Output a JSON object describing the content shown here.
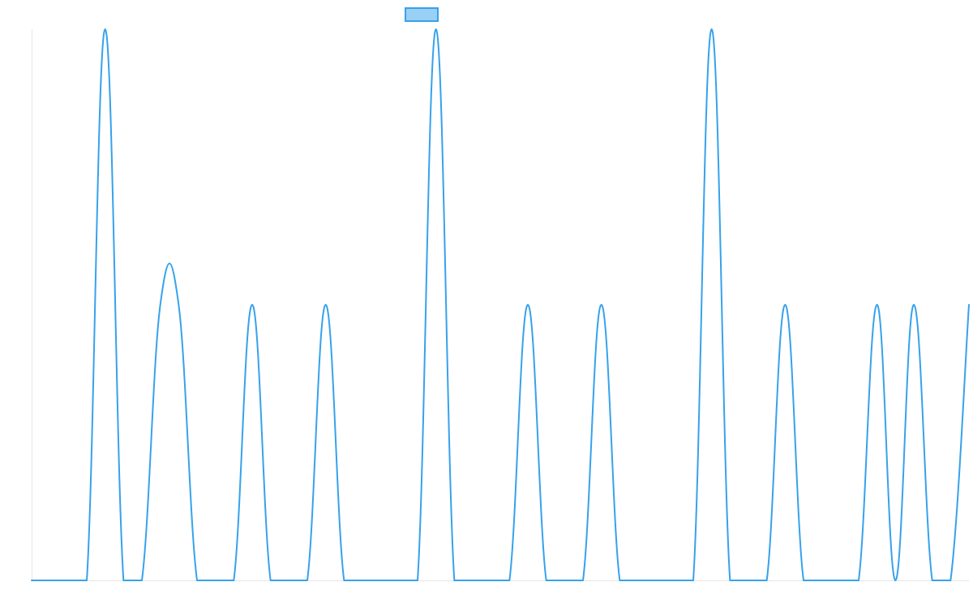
{
  "colors": {
    "series_stroke": "#36a2eb",
    "legend_fill": "#9ad0f5",
    "axis": "#e6e6e6",
    "background": "#ffffff"
  },
  "chart_data": {
    "type": "line",
    "title": "",
    "xlabel": "",
    "ylabel": "",
    "grid": false,
    "legend": {
      "position": "top-center",
      "entries": [
        ""
      ]
    },
    "xlim": [
      0,
      51
    ],
    "ylim": [
      0,
      2
    ],
    "series": [
      {
        "name": "",
        "x": [
          0,
          1,
          2,
          3,
          4,
          5,
          6,
          7,
          8,
          9,
          10,
          11,
          12,
          13,
          14,
          15,
          16,
          17,
          18,
          19,
          20,
          21,
          22,
          23,
          24,
          25,
          26,
          27,
          28,
          29,
          30,
          31,
          32,
          33,
          34,
          35,
          36,
          37,
          38,
          39,
          40,
          41,
          42,
          43,
          44,
          45,
          46,
          47,
          48,
          49,
          50,
          51
        ],
        "y": [
          0,
          0,
          0,
          0,
          2,
          0,
          0,
          1,
          1,
          0,
          0,
          0,
          1,
          0,
          0,
          0,
          1,
          0,
          0,
          0,
          0,
          0,
          2,
          0,
          0,
          0,
          0,
          1,
          0,
          0,
          0,
          1,
          0,
          0,
          0,
          0,
          0,
          2,
          0,
          0,
          0,
          1,
          0,
          0,
          0,
          0,
          1,
          0,
          1,
          0,
          0,
          1
        ]
      }
    ]
  }
}
